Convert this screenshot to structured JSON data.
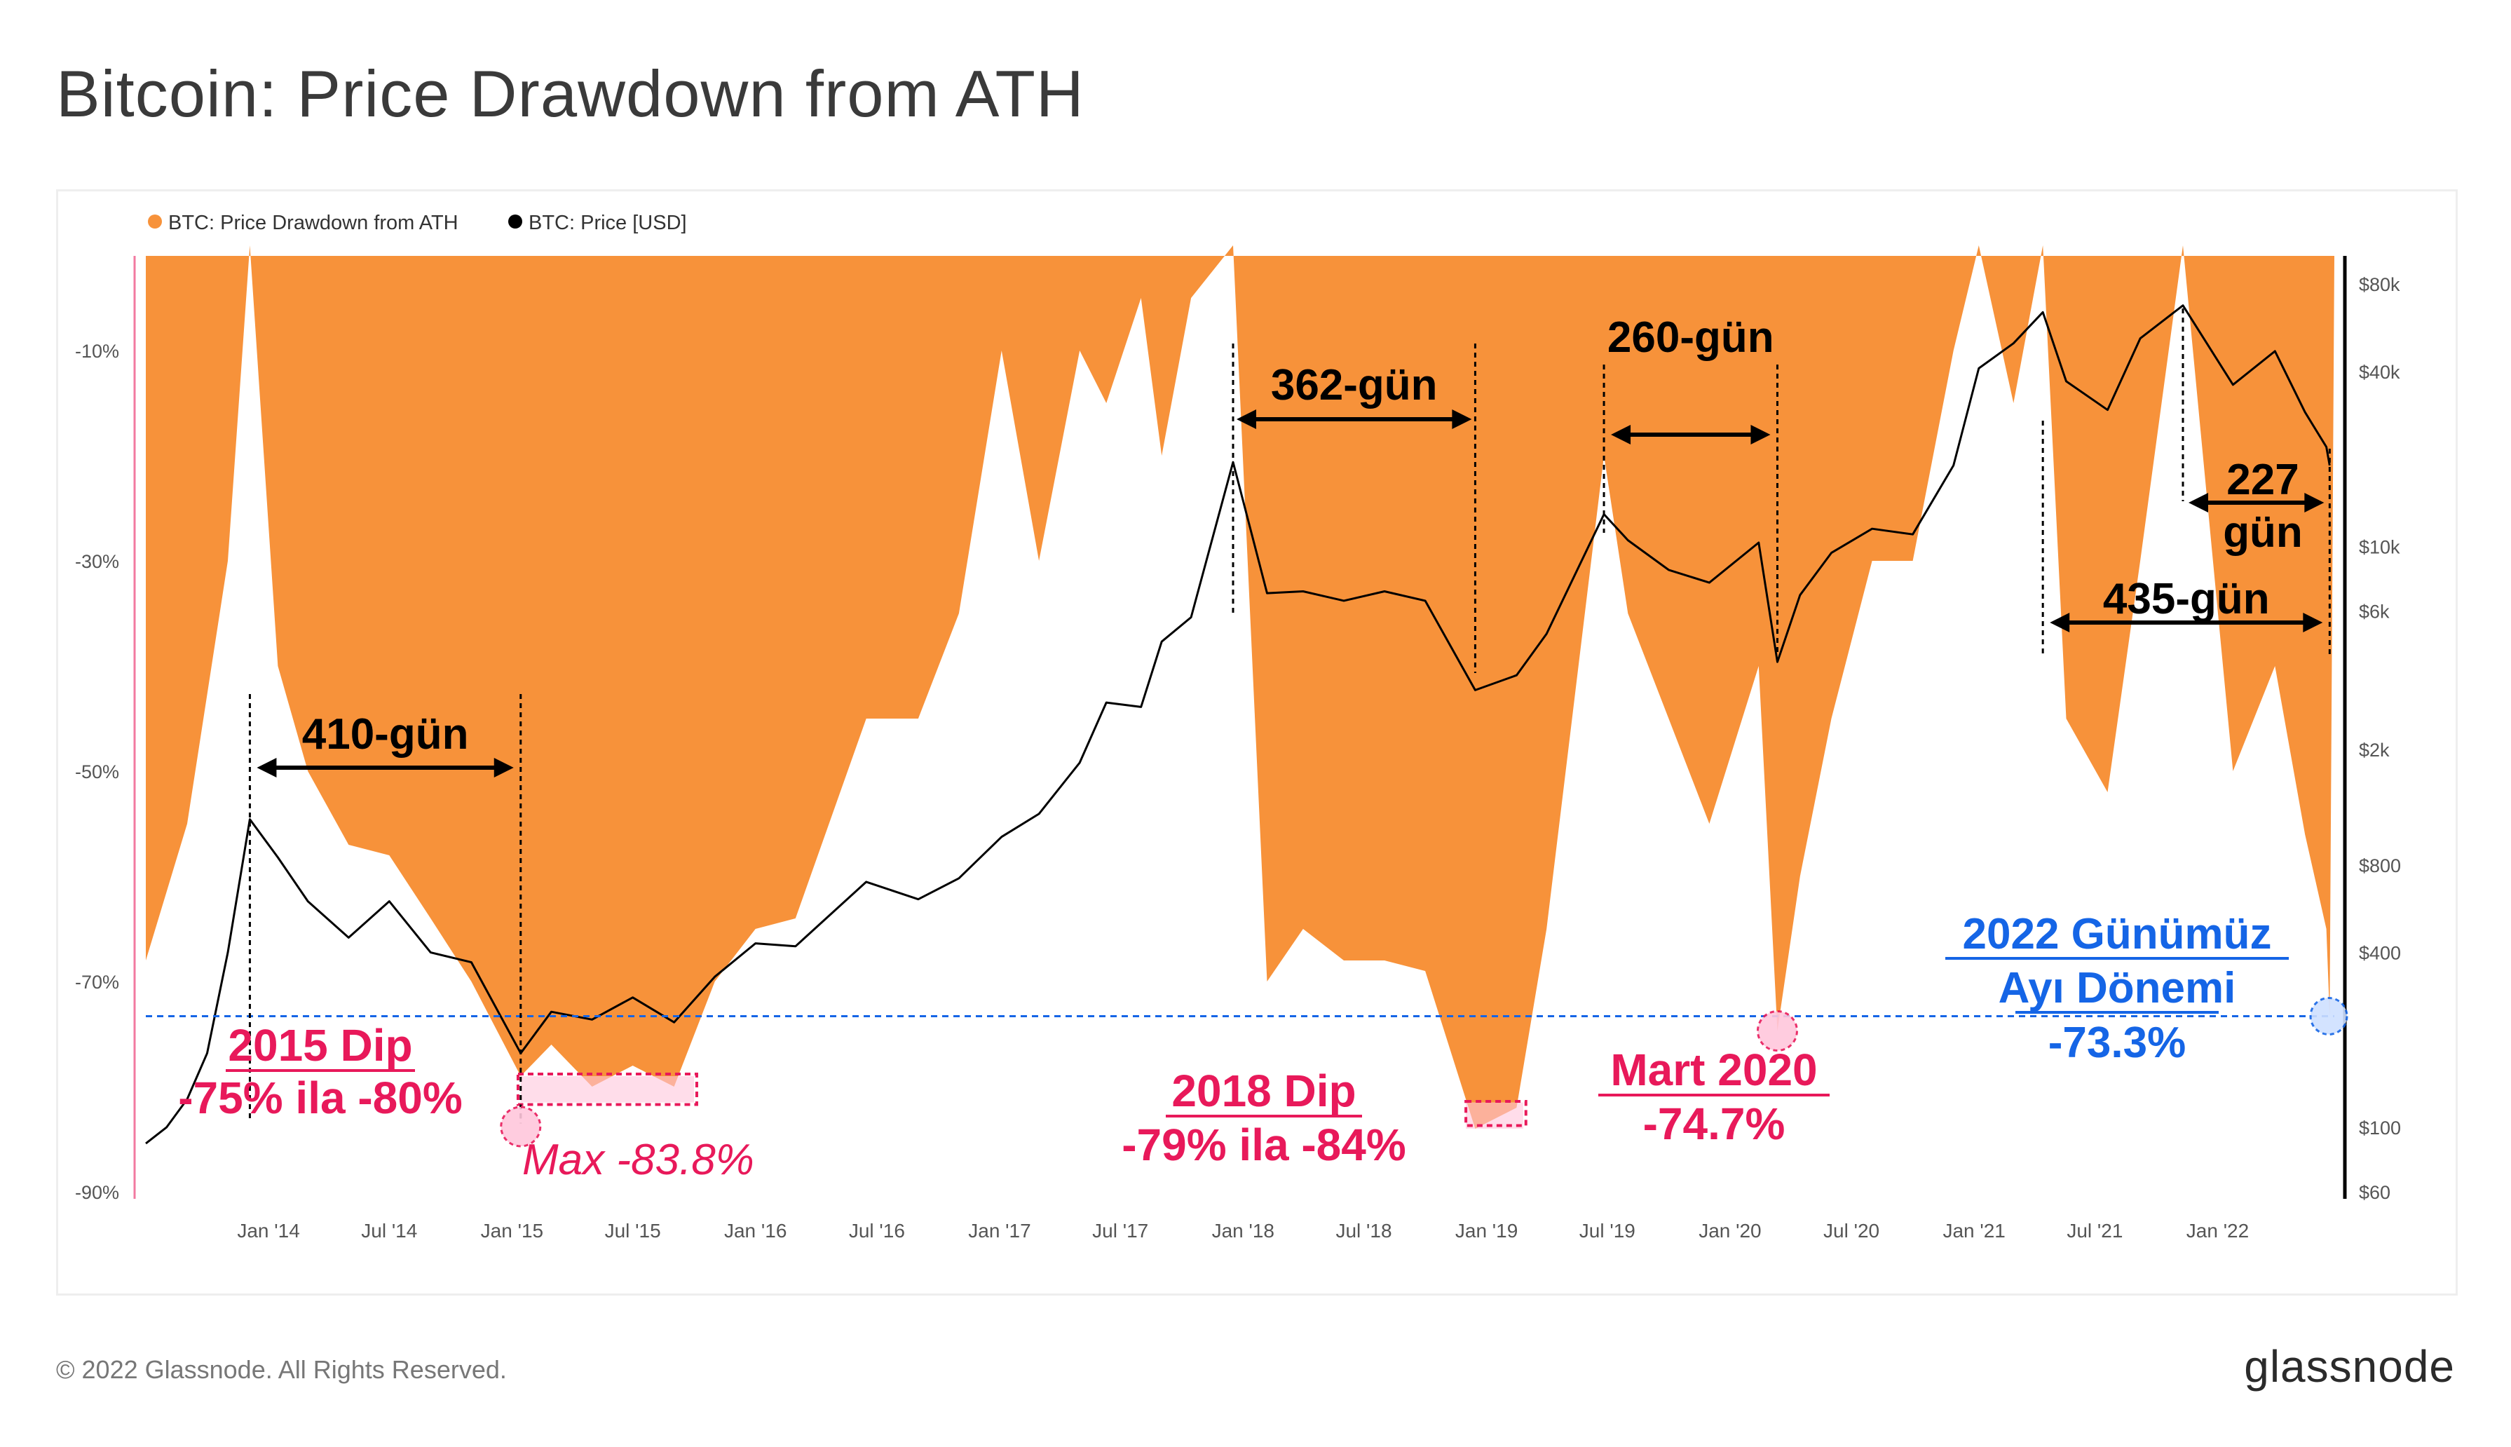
{
  "title": "Bitcoin: Price Drawdown from ATH",
  "footer": "© 2022 Glassnode. All Rights Reserved.",
  "logo": "glassnode",
  "colors": {
    "drawdown": "#f7923a",
    "price": "#000000",
    "annotation_pink": "#e8195a",
    "annotation_blue": "#1565e6",
    "left_axis_line": "#f27aa0"
  },
  "chart_data": {
    "type": "area",
    "series": [
      {
        "name": "BTC: Price Drawdown from ATH",
        "axis": "left",
        "x": [
          "2013-07-01",
          "2013-09-01",
          "2013-11-01",
          "2013-12-04",
          "2014-01-15",
          "2014-03-01",
          "2014-05-01",
          "2014-07-01",
          "2014-09-01",
          "2014-11-01",
          "2015-01-14",
          "2015-03-01",
          "2015-05-01",
          "2015-07-01",
          "2015-09-01",
          "2015-11-01",
          "2016-01-01",
          "2016-03-01",
          "2016-06-15",
          "2016-09-01",
          "2016-11-01",
          "2017-01-04",
          "2017-03-01",
          "2017-05-01",
          "2017-06-10",
          "2017-08-01",
          "2017-09-01",
          "2017-10-15",
          "2017-12-17",
          "2018-02-06",
          "2018-04-01",
          "2018-06-01",
          "2018-08-01",
          "2018-10-01",
          "2018-12-15",
          "2019-02-15",
          "2019-04-01",
          "2019-06-26",
          "2019-08-01",
          "2019-10-01",
          "2019-12-01",
          "2020-02-13",
          "2020-03-12",
          "2020-04-15",
          "2020-06-01",
          "2020-08-01",
          "2020-10-01",
          "2020-12-01",
          "2021-01-08",
          "2021-03-01",
          "2021-04-14",
          "2021-05-19",
          "2021-07-20",
          "2021-09-07",
          "2021-11-10",
          "2022-01-24",
          "2022-03-28",
          "2022-05-12",
          "2022-06-13",
          "2022-06-18"
        ],
        "values": [
          -68,
          -55,
          -30,
          0,
          -40,
          -50,
          -57,
          -58,
          -64,
          -70,
          -79,
          -76,
          -80,
          -78,
          -80,
          -70,
          -65,
          -64,
          -45,
          -45,
          -35,
          -10,
          -30,
          -10,
          -15,
          -5,
          -20,
          -5,
          0,
          -70,
          -65,
          -68,
          -68,
          -69,
          -84,
          -82,
          -65,
          -20,
          -35,
          -45,
          -55,
          -40,
          -74.7,
          -60,
          -45,
          -30,
          -30,
          -10,
          0,
          -15,
          0,
          -45,
          -52,
          -30,
          0,
          -50,
          -40,
          -56,
          -65,
          -73.3
        ]
      },
      {
        "name": "BTC: Price [USD]",
        "axis": "right",
        "x": [
          "2013-07-01",
          "2013-08-01",
          "2013-09-01",
          "2013-10-01",
          "2013-11-01",
          "2013-12-04",
          "2014-01-15",
          "2014-03-01",
          "2014-05-01",
          "2014-07-01",
          "2014-09-01",
          "2014-11-01",
          "2015-01-14",
          "2015-03-01",
          "2015-05-01",
          "2015-07-01",
          "2015-09-01",
          "2015-11-01",
          "2016-01-01",
          "2016-03-01",
          "2016-06-15",
          "2016-09-01",
          "2016-11-01",
          "2017-01-04",
          "2017-03-01",
          "2017-05-01",
          "2017-06-10",
          "2017-08-01",
          "2017-09-01",
          "2017-10-15",
          "2017-12-17",
          "2018-02-06",
          "2018-04-01",
          "2018-06-01",
          "2018-08-01",
          "2018-10-01",
          "2018-12-15",
          "2019-02-15",
          "2019-04-01",
          "2019-06-26",
          "2019-08-01",
          "2019-10-01",
          "2019-12-01",
          "2020-02-13",
          "2020-03-12",
          "2020-04-15",
          "2020-06-01",
          "2020-08-01",
          "2020-10-01",
          "2020-12-01",
          "2021-01-08",
          "2021-03-01",
          "2021-04-14",
          "2021-05-19",
          "2021-07-20",
          "2021-09-07",
          "2021-11-10",
          "2022-01-24",
          "2022-03-28",
          "2022-05-12",
          "2022-06-13",
          "2022-06-18"
        ],
        "values": [
          88,
          100,
          125,
          180,
          400,
          1150,
          850,
          600,
          450,
          600,
          400,
          370,
          180,
          250,
          235,
          280,
          230,
          330,
          430,
          420,
          700,
          610,
          720,
          1000,
          1200,
          1800,
          2900,
          2800,
          4700,
          5700,
          19500,
          6900,
          7000,
          6500,
          7000,
          6500,
          3200,
          3600,
          5000,
          12900,
          10500,
          8300,
          7500,
          10300,
          4000,
          6800,
          9500,
          11500,
          11000,
          19000,
          41000,
          50000,
          64000,
          37000,
          29500,
          52000,
          67500,
          36000,
          47000,
          29000,
          22000,
          19000
        ]
      }
    ],
    "y_left": {
      "ticks": [
        "-10%",
        "-30%",
        "-50%",
        "-70%",
        "-90%"
      ],
      "range": [
        -90,
        0
      ]
    },
    "y_right": {
      "scale": "log",
      "ticks": [
        "$80k",
        "$40k",
        "$10k",
        "$6k",
        "$2k",
        "$800",
        "$400",
        "$100",
        "$60"
      ],
      "range": [
        60,
        80000
      ]
    },
    "x_ticks": [
      "Jan '14",
      "Jul '14",
      "Jan '15",
      "Jul '15",
      "Jan '16",
      "Jul '16",
      "Jan '17",
      "Jul '17",
      "Jan '18",
      "Jul '18",
      "Jan '19",
      "Jul '19",
      "Jan '20",
      "Jul '20",
      "Jan '21",
      "Jul '21",
      "Jan '22"
    ],
    "legend": {
      "placement": "top-left"
    },
    "reference_line": {
      "value": -73.3,
      "style": "dashed"
    },
    "annotations": {
      "gun_410": "410-gün",
      "gun_362": "362-gün",
      "gun_260": "260-gün",
      "gun_227_a": "227",
      "gun_227_b": "gün",
      "gun_435": "435-gün",
      "dip2015_a": "2015 Dip",
      "dip2015_b": "-75% ila -80%",
      "max": "Max -83.8%",
      "dip2018_a": "2018 Dip",
      "dip2018_b": "-79% ila -84%",
      "mart_a": "Mart 2020",
      "mart_b": "-74.7%",
      "cur_a": "2022 Günümüz",
      "cur_b": "Ayı Dönemi",
      "cur_c": "-73.3%"
    },
    "ranges_days": [
      {
        "label": "410-gün",
        "from": "2013-12-04",
        "to": "2015-01-14"
      },
      {
        "label": "362-gün",
        "from": "2017-12-17",
        "to": "2018-12-15"
      },
      {
        "label": "260-gün",
        "from": "2019-06-26",
        "to": "2020-03-12"
      },
      {
        "label": "435-gün",
        "from": "2021-04-14",
        "to": "2022-06-18"
      },
      {
        "label": "227 gün",
        "from": "2021-11-10",
        "to": "2022-06-18"
      }
    ]
  }
}
